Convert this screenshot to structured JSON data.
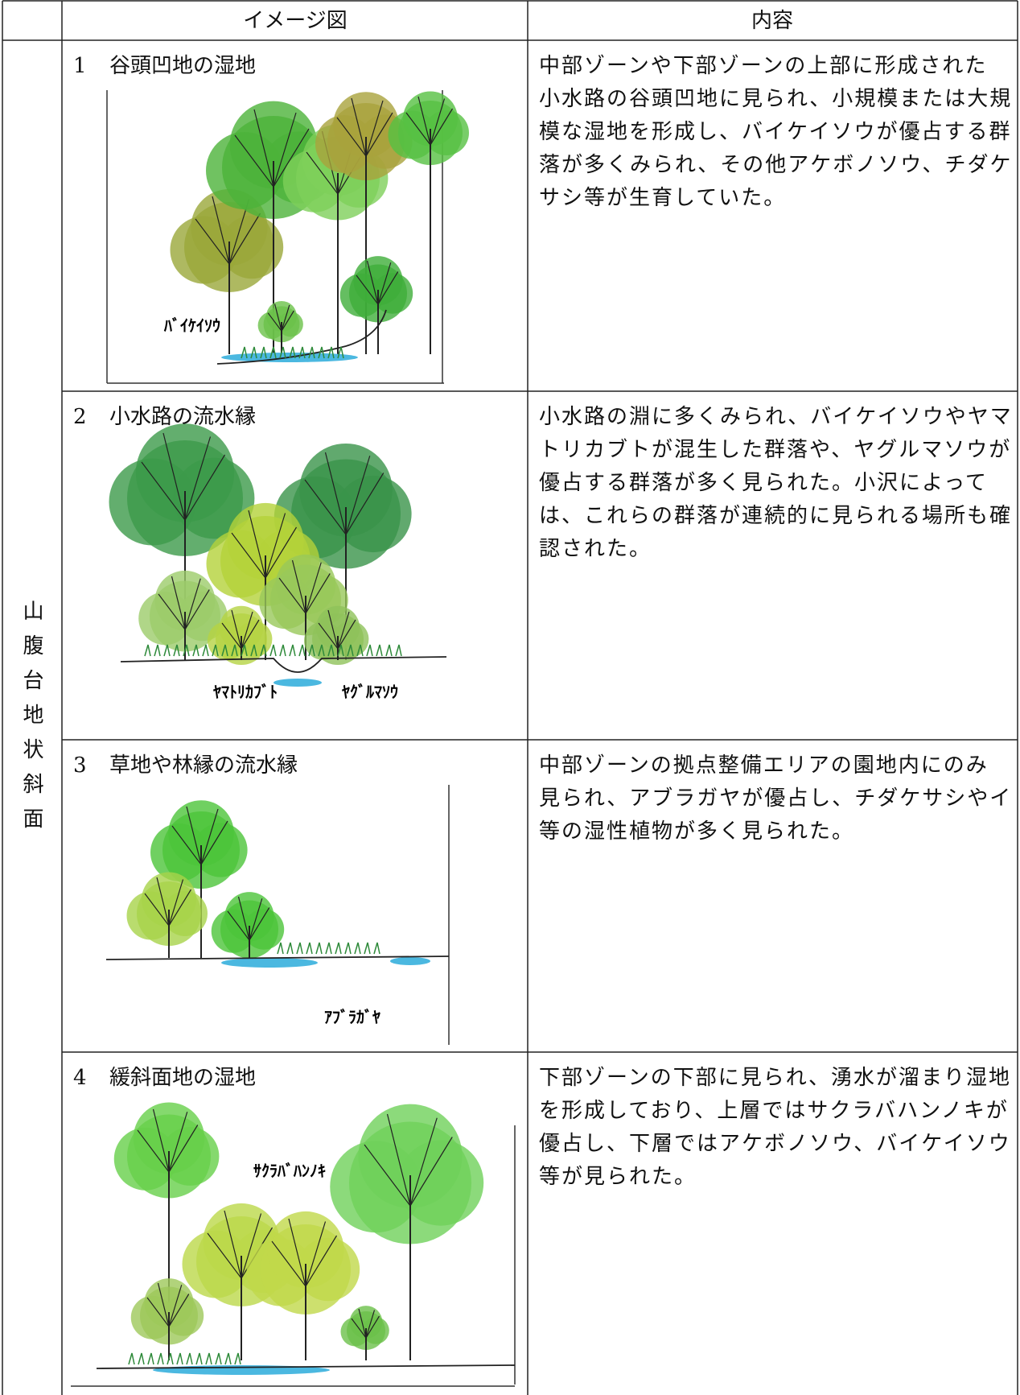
{
  "header": {
    "image_column": "イメージ図",
    "content_column": "内容"
  },
  "side_label": "山腹台地状斜面",
  "rows": [
    {
      "number": "1",
      "title": "谷頭凹地の湿地",
      "figure_labels": [
        "ﾊﾞｲｹｲｿｳ"
      ],
      "content": [
        "中部ゾーンや下部ゾーンの上部に形成された",
        "小水路の谷頭凹地に見られ、小規模または大規",
        "模な湿地を形成し、バイケイソウが優占する群",
        "落が多くみられ、その他アケボノソウ、チダケ",
        "サシ等が生育していた。"
      ]
    },
    {
      "number": "2",
      "title": "小水路の流水縁",
      "figure_labels": [
        "ﾔﾏﾄﾘｶﾌﾞﾄ",
        "ﾔｸﾞﾙﾏｿｳ"
      ],
      "content": [
        "小水路の淵に多くみられ、バイケイソウやヤマ",
        "トリカブトが混生した群落や、ヤグルマソウが",
        "優占する群落が多く見られた。小沢によって",
        "は、これらの群落が連続的に見られる場所も確",
        "認された。"
      ]
    },
    {
      "number": "3",
      "title": "草地や林縁の流水縁",
      "figure_labels": [
        "ｱﾌﾞﾗｶﾞﾔ"
      ],
      "content": [
        "中部ゾーンの拠点整備エリアの園地内にのみ",
        "見られ、アブラガヤが優占し、チダケサシやイ",
        "等の湿性植物が多く見られた。"
      ]
    },
    {
      "number": "4",
      "title": "緩斜面地の湿地",
      "figure_labels": [
        "ｻｸﾗﾊﾞﾊﾝﾉｷ"
      ],
      "content": [
        "下部ゾーンの下部に見られ、湧水が溜まり湿地",
        "を形成しており、上層ではサクラバハンノキが",
        "優占し、下層ではアケボノソウ、バイケイソウ",
        "等が見られた。"
      ]
    }
  ]
}
